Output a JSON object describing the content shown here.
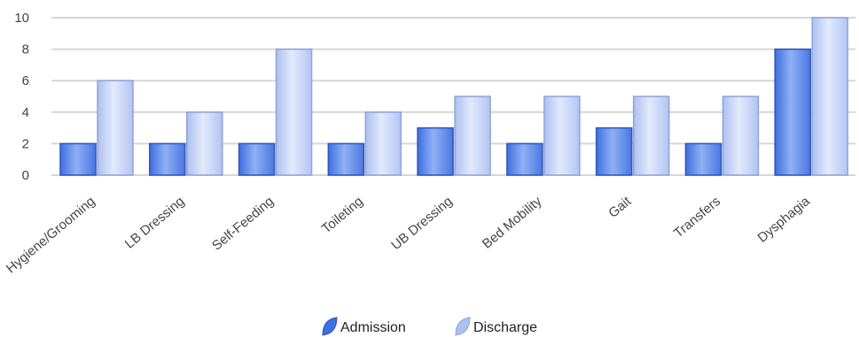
{
  "chart_data": {
    "type": "bar",
    "title": "",
    "xlabel": "",
    "ylabel": "",
    "categories": [
      "Hygiene/Grooming",
      "LB Dressing",
      "Self-Feeding",
      "Toileting",
      "UB Dressing",
      "Bed Mobility",
      "Gait",
      "Transfers",
      "Dysphagia"
    ],
    "series": [
      {
        "name": "Admission",
        "values": [
          2,
          2,
          2,
          2,
          3,
          2,
          3,
          2,
          8
        ],
        "color": "#5b84e6"
      },
      {
        "name": "Discharge",
        "values": [
          6,
          4,
          8,
          4,
          5,
          5,
          5,
          5,
          10
        ],
        "color": "#b8c9f4"
      }
    ],
    "ylim": [
      0,
      10
    ],
    "yticks": [
      0,
      2,
      4,
      6,
      8,
      10
    ],
    "grid": true,
    "legend_position": "bottom"
  }
}
